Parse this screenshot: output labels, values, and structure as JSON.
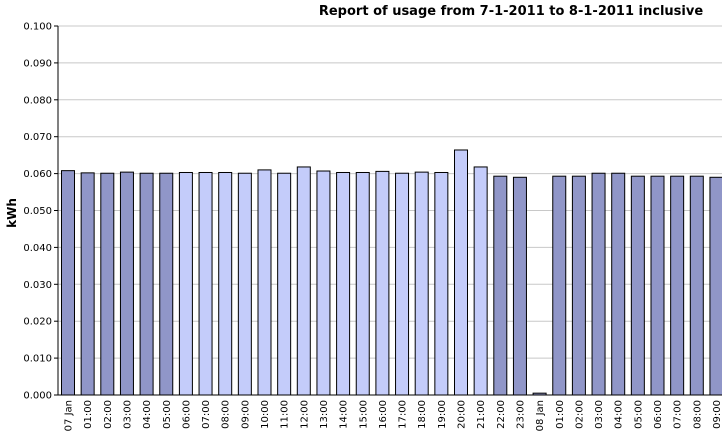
{
  "chart_data": {
    "type": "bar",
    "title": "Report of usage from 7-1-2011 to 8-1-2011 inclusive",
    "xlabel": "",
    "ylabel": "kWh",
    "ylim": [
      0,
      0.1
    ],
    "y_ticks": [
      "0.000",
      "0.010",
      "0.020",
      "0.030",
      "0.040",
      "0.050",
      "0.060",
      "0.070",
      "0.080",
      "0.090",
      "0.100"
    ],
    "grid": true,
    "categories": [
      "07 Jan",
      "01:00",
      "02:00",
      "03:00",
      "04:00",
      "05:00",
      "06:00",
      "07:00",
      "08:00",
      "09:00",
      "10:00",
      "11:00",
      "12:00",
      "13:00",
      "14:00",
      "15:00",
      "16:00",
      "17:00",
      "18:00",
      "19:00",
      "20:00",
      "21:00",
      "22:00",
      "23:00",
      "08 Jan",
      "01:00",
      "02:00",
      "03:00",
      "04:00",
      "05:00",
      "06:00",
      "07:00",
      "08:00",
      "09:00"
    ],
    "values": [
      0.0608,
      0.0602,
      0.0601,
      0.0604,
      0.0601,
      0.0601,
      0.0603,
      0.0603,
      0.0603,
      0.0601,
      0.061,
      0.0601,
      0.0618,
      0.0607,
      0.0603,
      0.0603,
      0.0606,
      0.0601,
      0.0604,
      0.0603,
      0.0664,
      0.0618,
      0.0593,
      0.059,
      0.0005,
      0.0593,
      0.0593,
      0.0601,
      0.0601,
      0.0593,
      0.0593,
      0.0593,
      0.0593,
      0.059
    ],
    "bar_colors": [
      "#9096c8",
      "#9096c8",
      "#9096c8",
      "#9096c8",
      "#9096c8",
      "#9096c8",
      "#c4ccfa",
      "#c4ccfa",
      "#c4ccfa",
      "#c4ccfa",
      "#c4ccfa",
      "#c4ccfa",
      "#c4ccfa",
      "#c4ccfa",
      "#c4ccfa",
      "#c4ccfa",
      "#c4ccfa",
      "#c4ccfa",
      "#c4ccfa",
      "#c4ccfa",
      "#c4ccfa",
      "#c4ccfa",
      "#9096c8",
      "#9096c8",
      "#9096c8",
      "#9096c8",
      "#9096c8",
      "#9096c8",
      "#9096c8",
      "#9096c8",
      "#9096c8",
      "#9096c8",
      "#9096c8",
      "#9096c8"
    ],
    "colors": {
      "axis": "#000000",
      "grid": "#c8c8c8",
      "bar_stroke": "#000000"
    }
  }
}
